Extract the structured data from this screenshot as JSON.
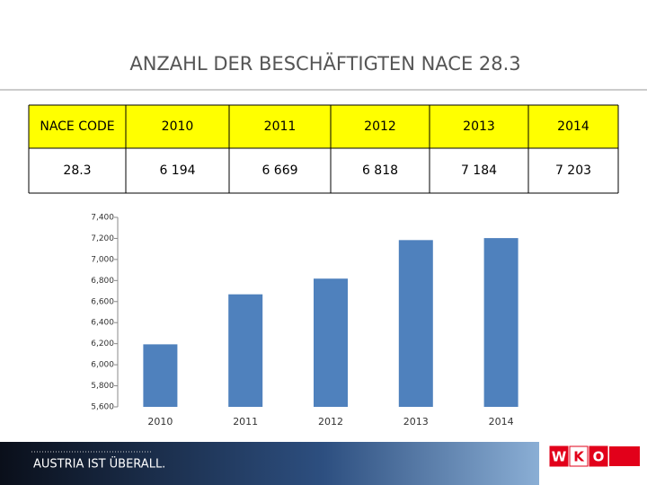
{
  "header": {
    "title": "ANZAHL DER BESCHÄFTIGTEN NACE 28.3"
  },
  "table": {
    "rows": [
      [
        "NACE CODE",
        "2010",
        "2011",
        "2012",
        "2013",
        "2014"
      ],
      [
        "28.3",
        "6 194",
        "6 669",
        "6 818",
        "7 184",
        "7 203"
      ]
    ]
  },
  "chart_data": {
    "type": "bar",
    "categories": [
      "2010",
      "2011",
      "2012",
      "2013",
      "2014"
    ],
    "values": [
      6194,
      6669,
      6818,
      7184,
      7203
    ],
    "color": "#4f81bd",
    "ylim": [
      5600,
      7400
    ],
    "yticks": [
      {
        "value": 5600,
        "label": "5,600"
      },
      {
        "value": 5800,
        "label": "5,800"
      },
      {
        "value": 6000,
        "label": "6,000"
      },
      {
        "value": 6200,
        "label": "6,200"
      },
      {
        "value": 6400,
        "label": "6,400"
      },
      {
        "value": 6600,
        "label": "6,600"
      },
      {
        "value": 6800,
        "label": "6,800"
      },
      {
        "value": 7000,
        "label": "7,000"
      },
      {
        "value": 7200,
        "label": "7,200"
      },
      {
        "value": 7400,
        "label": "7,400"
      }
    ],
    "grid": false
  },
  "footer": {
    "slogan": "AUSTRIA IST ÜBERALL.",
    "logo": [
      "W",
      "K",
      "O"
    ]
  }
}
